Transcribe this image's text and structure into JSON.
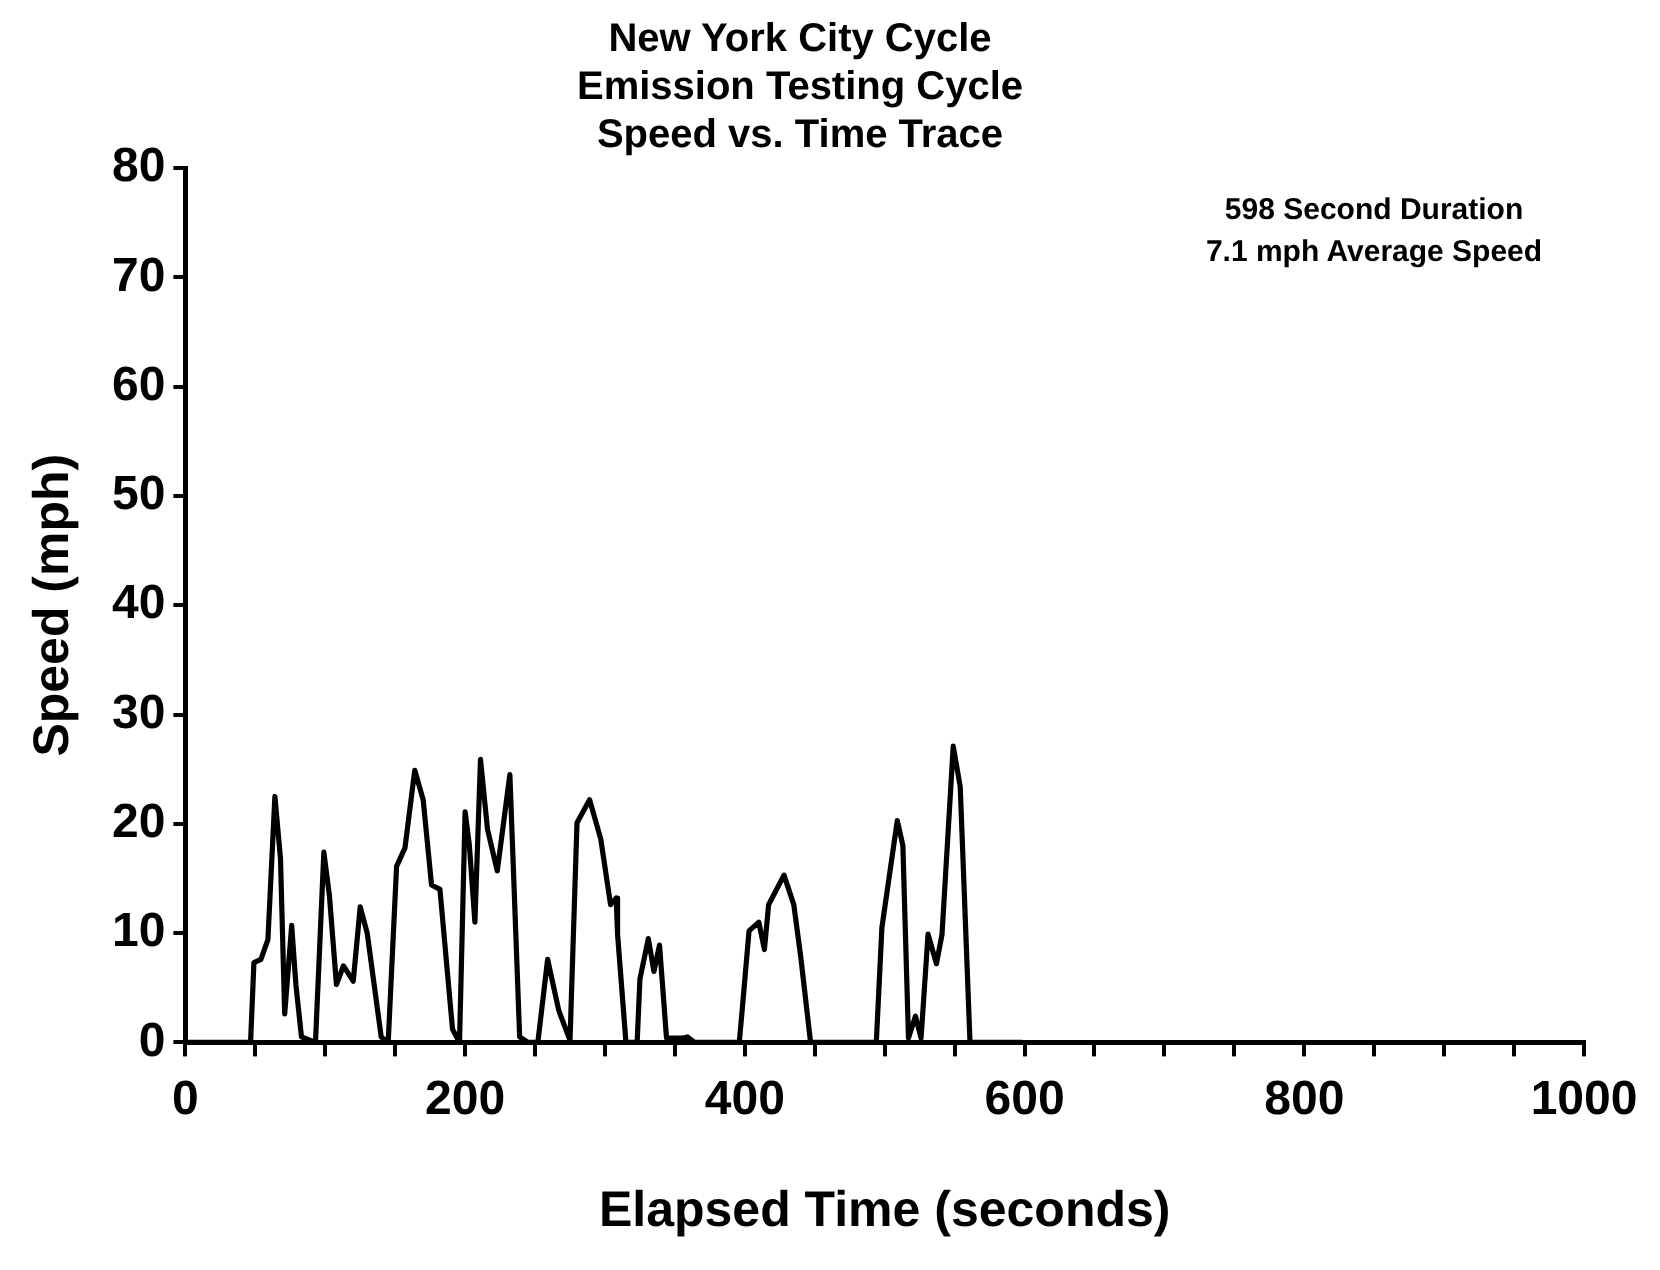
{
  "chart_data": {
    "type": "line",
    "title": "New York City Cycle\nEmission Testing Cycle\nSpeed vs. Time Trace",
    "xlabel": "Elapsed Time (seconds)",
    "ylabel": "Speed (mph)",
    "annotations": [
      "598 Second Duration",
      "7.1 mph Average Speed"
    ],
    "series": [
      {
        "color": "#000000",
        "x": [
          0,
          46.6,
          49,
          54,
          59,
          64,
          68,
          71,
          76,
          79,
          83,
          93,
          99,
          103,
          108,
          113,
          120,
          125,
          130,
          140,
          145,
          151,
          157,
          164,
          170,
          176,
          182,
          191,
          196,
          200,
          203,
          207,
          211,
          216,
          223,
          232,
          239,
          245,
          252,
          259,
          267,
          275,
          280,
          289,
          297,
          304,
          308,
          309,
          315,
          323,
          325,
          331,
          335,
          339,
          344,
          356,
          359,
          364,
          396,
          398,
          403,
          410,
          414,
          417,
          428,
          435,
          440,
          447,
          494,
          498,
          509,
          513,
          517,
          522,
          526,
          531,
          537,
          541,
          549,
          554,
          561,
          598
        ],
        "values": [
          0,
          0,
          7.3,
          7.6,
          9.4,
          22.5,
          16.8,
          2.6,
          10.7,
          5.3,
          0.5,
          0,
          17.4,
          13.4,
          5.3,
          7,
          5.6,
          12.4,
          10,
          0.5,
          0,
          16.1,
          17.8,
          24.9,
          22.2,
          14.4,
          14,
          1.2,
          0,
          21.1,
          18.1,
          11,
          25.9,
          19.5,
          15.7,
          24.5,
          0.5,
          0,
          0,
          7.6,
          2.9,
          0.2,
          20.1,
          22.2,
          18.6,
          12.6,
          13.2,
          9.9,
          0,
          0,
          5.8,
          9.5,
          6.5,
          8.9,
          0.4,
          0.4,
          0.5,
          0,
          0,
          2.8,
          10.2,
          11,
          8.5,
          12.6,
          15.3,
          12.6,
          7.8,
          0,
          0,
          10.5,
          20.3,
          18,
          0.4,
          2.4,
          0.4,
          9.9,
          7.2,
          9.9,
          27.1,
          23.4,
          0,
          0
        ]
      }
    ],
    "xlim": [
      0,
      1000
    ],
    "xticks": [
      0,
      {
        "value": 50,
        "label": null
      },
      {
        "value": 100,
        "label": null
      },
      {
        "value": 150,
        "label": null
      },
      200,
      {
        "value": 250,
        "label": null
      },
      {
        "value": 300,
        "label": null
      },
      {
        "value": 350,
        "label": null
      },
      400,
      {
        "value": 450,
        "label": null
      },
      {
        "value": 500,
        "label": null
      },
      {
        "value": 550,
        "label": null
      },
      600,
      {
        "value": 650,
        "label": null
      },
      {
        "value": 700,
        "label": null
      },
      {
        "value": 750,
        "label": null
      },
      800,
      {
        "value": 850,
        "label": null
      },
      {
        "value": 900,
        "label": null
      },
      {
        "value": 950,
        "label": null
      },
      1000
    ],
    "ylim": [
      0,
      80
    ],
    "yticks": [
      0,
      10,
      20,
      30,
      40,
      50,
      60,
      70,
      80
    ],
    "grid": false,
    "legend": false,
    "marker": "none",
    "line_style": "solid"
  }
}
